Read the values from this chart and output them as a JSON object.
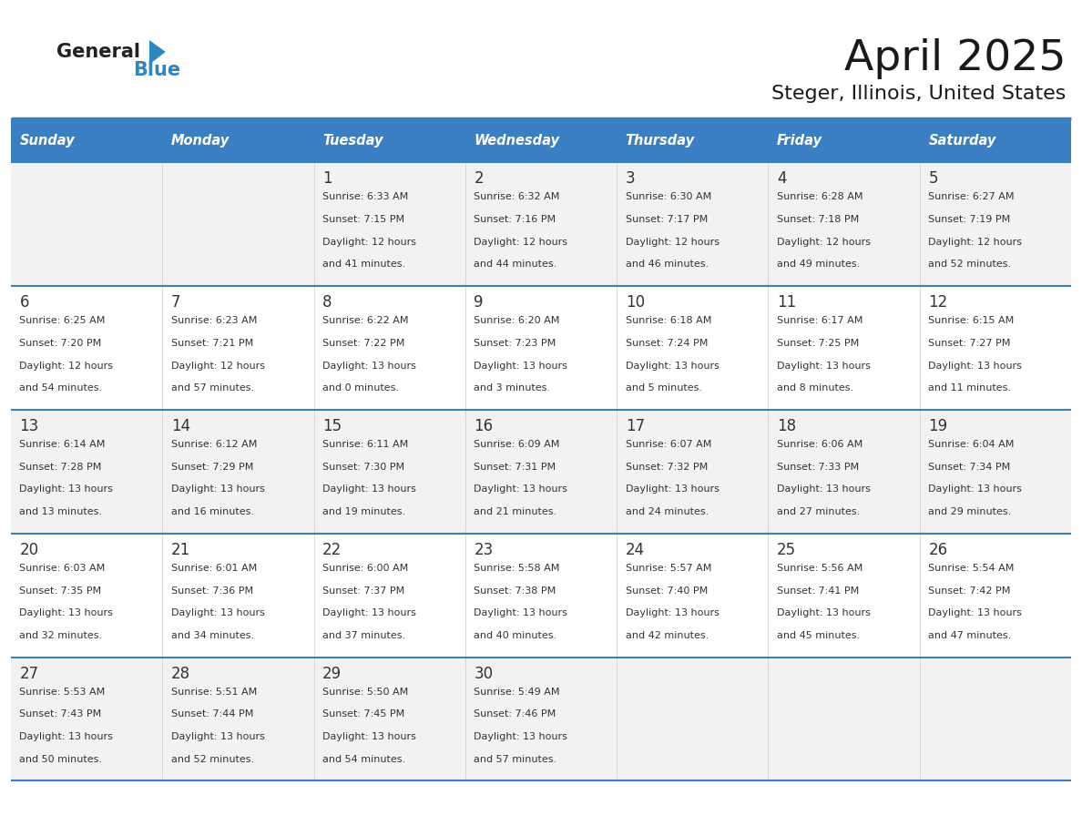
{
  "title": "April 2025",
  "subtitle": "Steger, Illinois, United States",
  "header_bg_color": "#3A7FC1",
  "header_text_color": "#FFFFFF",
  "header_days": [
    "Sunday",
    "Monday",
    "Tuesday",
    "Wednesday",
    "Thursday",
    "Friday",
    "Saturday"
  ],
  "row_bg_even": "#F2F2F2",
  "row_bg_odd": "#FFFFFF",
  "divider_color": "#3A7FC1",
  "text_color": "#333333",
  "logo_general_color": "#222222",
  "logo_blue_color": "#2E86C1",
  "calendar_data": [
    [
      {
        "day": null,
        "info": null
      },
      {
        "day": null,
        "info": null
      },
      {
        "day": 1,
        "info": "Sunrise: 6:33 AM\nSunset: 7:15 PM\nDaylight: 12 hours\nand 41 minutes."
      },
      {
        "day": 2,
        "info": "Sunrise: 6:32 AM\nSunset: 7:16 PM\nDaylight: 12 hours\nand 44 minutes."
      },
      {
        "day": 3,
        "info": "Sunrise: 6:30 AM\nSunset: 7:17 PM\nDaylight: 12 hours\nand 46 minutes."
      },
      {
        "day": 4,
        "info": "Sunrise: 6:28 AM\nSunset: 7:18 PM\nDaylight: 12 hours\nand 49 minutes."
      },
      {
        "day": 5,
        "info": "Sunrise: 6:27 AM\nSunset: 7:19 PM\nDaylight: 12 hours\nand 52 minutes."
      }
    ],
    [
      {
        "day": 6,
        "info": "Sunrise: 6:25 AM\nSunset: 7:20 PM\nDaylight: 12 hours\nand 54 minutes."
      },
      {
        "day": 7,
        "info": "Sunrise: 6:23 AM\nSunset: 7:21 PM\nDaylight: 12 hours\nand 57 minutes."
      },
      {
        "day": 8,
        "info": "Sunrise: 6:22 AM\nSunset: 7:22 PM\nDaylight: 13 hours\nand 0 minutes."
      },
      {
        "day": 9,
        "info": "Sunrise: 6:20 AM\nSunset: 7:23 PM\nDaylight: 13 hours\nand 3 minutes."
      },
      {
        "day": 10,
        "info": "Sunrise: 6:18 AM\nSunset: 7:24 PM\nDaylight: 13 hours\nand 5 minutes."
      },
      {
        "day": 11,
        "info": "Sunrise: 6:17 AM\nSunset: 7:25 PM\nDaylight: 13 hours\nand 8 minutes."
      },
      {
        "day": 12,
        "info": "Sunrise: 6:15 AM\nSunset: 7:27 PM\nDaylight: 13 hours\nand 11 minutes."
      }
    ],
    [
      {
        "day": 13,
        "info": "Sunrise: 6:14 AM\nSunset: 7:28 PM\nDaylight: 13 hours\nand 13 minutes."
      },
      {
        "day": 14,
        "info": "Sunrise: 6:12 AM\nSunset: 7:29 PM\nDaylight: 13 hours\nand 16 minutes."
      },
      {
        "day": 15,
        "info": "Sunrise: 6:11 AM\nSunset: 7:30 PM\nDaylight: 13 hours\nand 19 minutes."
      },
      {
        "day": 16,
        "info": "Sunrise: 6:09 AM\nSunset: 7:31 PM\nDaylight: 13 hours\nand 21 minutes."
      },
      {
        "day": 17,
        "info": "Sunrise: 6:07 AM\nSunset: 7:32 PM\nDaylight: 13 hours\nand 24 minutes."
      },
      {
        "day": 18,
        "info": "Sunrise: 6:06 AM\nSunset: 7:33 PM\nDaylight: 13 hours\nand 27 minutes."
      },
      {
        "day": 19,
        "info": "Sunrise: 6:04 AM\nSunset: 7:34 PM\nDaylight: 13 hours\nand 29 minutes."
      }
    ],
    [
      {
        "day": 20,
        "info": "Sunrise: 6:03 AM\nSunset: 7:35 PM\nDaylight: 13 hours\nand 32 minutes."
      },
      {
        "day": 21,
        "info": "Sunrise: 6:01 AM\nSunset: 7:36 PM\nDaylight: 13 hours\nand 34 minutes."
      },
      {
        "day": 22,
        "info": "Sunrise: 6:00 AM\nSunset: 7:37 PM\nDaylight: 13 hours\nand 37 minutes."
      },
      {
        "day": 23,
        "info": "Sunrise: 5:58 AM\nSunset: 7:38 PM\nDaylight: 13 hours\nand 40 minutes."
      },
      {
        "day": 24,
        "info": "Sunrise: 5:57 AM\nSunset: 7:40 PM\nDaylight: 13 hours\nand 42 minutes."
      },
      {
        "day": 25,
        "info": "Sunrise: 5:56 AM\nSunset: 7:41 PM\nDaylight: 13 hours\nand 45 minutes."
      },
      {
        "day": 26,
        "info": "Sunrise: 5:54 AM\nSunset: 7:42 PM\nDaylight: 13 hours\nand 47 minutes."
      }
    ],
    [
      {
        "day": 27,
        "info": "Sunrise: 5:53 AM\nSunset: 7:43 PM\nDaylight: 13 hours\nand 50 minutes."
      },
      {
        "day": 28,
        "info": "Sunrise: 5:51 AM\nSunset: 7:44 PM\nDaylight: 13 hours\nand 52 minutes."
      },
      {
        "day": 29,
        "info": "Sunrise: 5:50 AM\nSunset: 7:45 PM\nDaylight: 13 hours\nand 54 minutes."
      },
      {
        "day": 30,
        "info": "Sunrise: 5:49 AM\nSunset: 7:46 PM\nDaylight: 13 hours\nand 57 minutes."
      },
      {
        "day": null,
        "info": null
      },
      {
        "day": null,
        "info": null
      },
      {
        "day": null,
        "info": null
      }
    ]
  ],
  "fig_width": 11.88,
  "fig_height": 9.18
}
